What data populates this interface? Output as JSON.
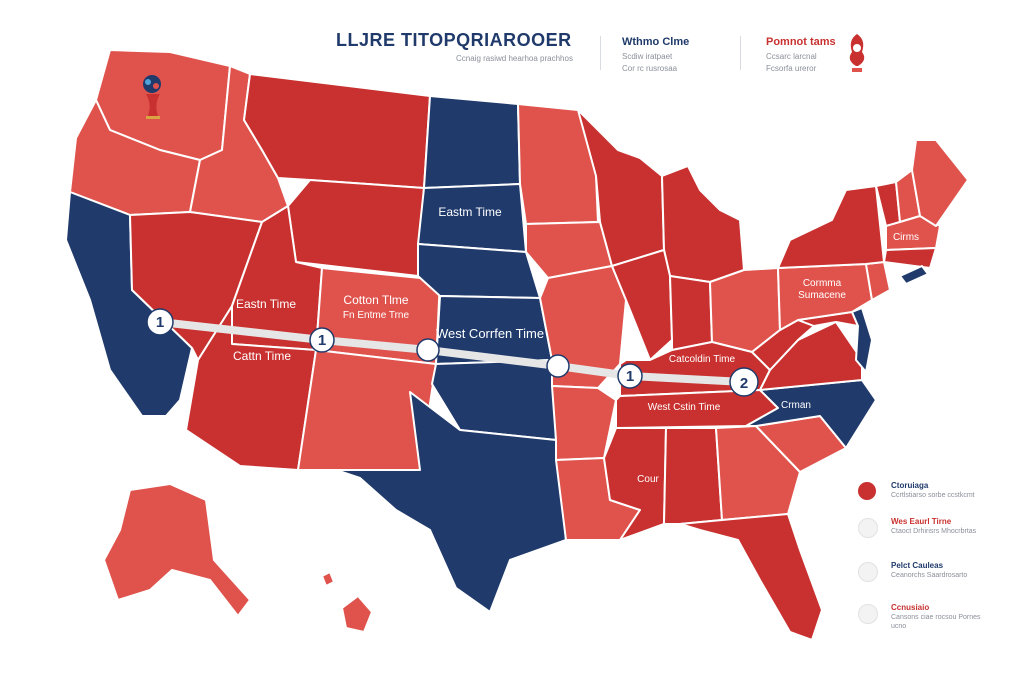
{
  "colors": {
    "red": "#e0534d",
    "dark_red": "#c8312f",
    "navy": "#1f3a6b",
    "route": "#e6e6e6",
    "white": "#ffffff"
  },
  "icons": {
    "logo": "trophy-logo-icon",
    "badge": "emblem-badge-icon"
  },
  "header": {
    "title": "LLJRE TITOPQRIAROOER",
    "subtitle": "Ccnaig rasiwd hearhoa prachhos",
    "col1_title": "Wthmo Clme",
    "col1_sub1": "Scdiw iratpaet",
    "col1_sub2": "Cor rc rusrosaa",
    "col2_title": "Pomnot tams",
    "col2_sub1": "Ccsarc larcnal",
    "col2_sub2": "Fcsorfa ureror"
  },
  "map_labels": {
    "dakota": "Eastm Time",
    "great_basin": "Eastn Time",
    "colorado": "Cotton Tlme",
    "colorado_sub": "Fn Entme Trne",
    "arizona": "Cattn Time",
    "kansas": "West Corrfen Time",
    "kentucky": "Catcoldin Time",
    "tennessee": "West Cstin Time",
    "carolina": "Crman",
    "pennsylvania": "Cormma",
    "pennsylvania_sub": "Sumacene",
    "new_england": "Cirms",
    "mississippi": "Cour"
  },
  "route": {
    "stops": [
      {
        "label": "1"
      },
      {
        "label": "1"
      },
      {
        "label": ""
      },
      {
        "label": ""
      },
      {
        "label": "1"
      },
      {
        "label": "2"
      }
    ]
  },
  "legend": [
    {
      "title": "Ctoruiaga",
      "sub": "Ccrtlstiarso sorbe ccstkcmt",
      "fill": "#c8312f"
    },
    {
      "title": "Wes Eaurl Tirne",
      "sub": "Ctaoct Drhirisrs Mhocrbrtas",
      "fill": "#f3f3f3"
    },
    {
      "title": "Pelct Cauleas",
      "sub": "Ceanorchs Saardrosarto",
      "fill": "#f3f3f3"
    },
    {
      "title": "Ccnusiaio",
      "sub": "Cansons ciae rocsou Pornes ucno",
      "fill": "#f3f3f3"
    }
  ]
}
